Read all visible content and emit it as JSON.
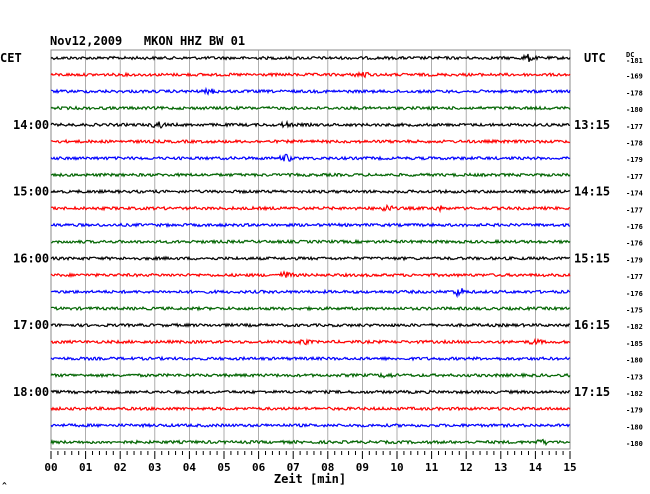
{
  "header": {
    "title": "Nov12,2009   MKON HHZ BW 01"
  },
  "labels": {
    "left_tz": "CET",
    "right_tz": "UTC",
    "dc_label": "DC",
    "xlabel": "Zeit [min]",
    "corner_mark": "^"
  },
  "chart_data": {
    "type": "line",
    "title": "Nov12,2009   MKON HHZ BW 01",
    "xlabel": "Zeit [min]",
    "xlim": [
      0,
      15
    ],
    "x_ticks": [
      "00",
      "01",
      "02",
      "03",
      "04",
      "05",
      "06",
      "07",
      "08",
      "09",
      "10",
      "11",
      "12",
      "13",
      "14",
      "15"
    ],
    "grid": true,
    "left_time_labels": [
      {
        "trace": 4,
        "label": "14:00"
      },
      {
        "trace": 8,
        "label": "15:00"
      },
      {
        "trace": 12,
        "label": "16:00"
      },
      {
        "trace": 16,
        "label": "17:00"
      },
      {
        "trace": 20,
        "label": "18:00"
      }
    ],
    "right_time_labels": [
      {
        "trace": 4,
        "label": "13:15"
      },
      {
        "trace": 8,
        "label": "14:15"
      },
      {
        "trace": 12,
        "label": "15:15"
      },
      {
        "trace": 16,
        "label": "16:15"
      },
      {
        "trace": 20,
        "label": "17:15"
      }
    ],
    "trace_colors": [
      "#000000",
      "#ff0000",
      "#0000ff",
      "#006400"
    ],
    "dc_offsets": [
      "-181",
      "-169",
      "-178",
      "-180",
      "-177",
      "-178",
      "-179",
      "-177",
      "-174",
      "-177",
      "-176",
      "-176",
      "-179",
      "-177",
      "-176",
      "-175",
      "-182",
      "-185",
      "-180",
      "-173",
      "-182",
      "-179",
      "-180",
      "-180"
    ],
    "events": [
      {
        "trace": 0,
        "minute": 13.8,
        "amp": 3
      },
      {
        "trace": 1,
        "minute": 9.0,
        "amp": 3
      },
      {
        "trace": 2,
        "minute": 4.6,
        "amp": 2
      },
      {
        "trace": 4,
        "minute": 3.1,
        "amp": 3
      },
      {
        "trace": 4,
        "minute": 6.8,
        "amp": 2
      },
      {
        "trace": 6,
        "minute": 6.8,
        "amp": 3
      },
      {
        "trace": 9,
        "minute": 9.7,
        "amp": 3
      },
      {
        "trace": 9,
        "minute": 11.2,
        "amp": 2
      },
      {
        "trace": 13,
        "minute": 6.8,
        "amp": 3
      },
      {
        "trace": 14,
        "minute": 11.8,
        "amp": 4
      },
      {
        "trace": 17,
        "minute": 7.3,
        "amp": 2
      },
      {
        "trace": 17,
        "minute": 14.0,
        "amp": 2
      },
      {
        "trace": 19,
        "minute": 9.7,
        "amp": 2
      },
      {
        "trace": 23,
        "minute": 14.2,
        "amp": 2
      }
    ]
  }
}
